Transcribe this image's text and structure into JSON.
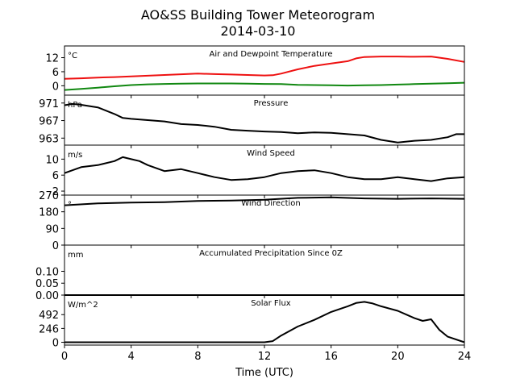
{
  "figure": {
    "title_line1": "AO&SS Building Tower Meteorogram",
    "title_line2": "2014-03-10",
    "xlabel": "Time (UTC)",
    "xticks": [
      "0",
      "4",
      "8",
      "12",
      "16",
      "20",
      "24"
    ]
  },
  "colors": {
    "temperature": "#ee1111",
    "dewpoint": "#118811",
    "default": "#000000"
  },
  "chart_data": [
    {
      "type": "line",
      "title": "Air and Dewpoint Temperature",
      "unit": "°C",
      "xlim": [
        0,
        24
      ],
      "ylim": [
        -4,
        17
      ],
      "yticks": [
        "12",
        "6",
        "0"
      ],
      "series": [
        {
          "x": [
            0,
            1,
            2,
            3,
            4,
            5,
            6,
            7,
            8,
            9,
            10,
            11,
            12,
            12.5,
            13,
            14,
            15,
            16,
            17,
            17.5,
            18,
            19,
            20,
            21,
            22,
            23,
            24
          ],
          "values": [
            3,
            3.2,
            3.5,
            3.7,
            4.0,
            4.3,
            4.6,
            4.9,
            5.2,
            5.0,
            4.8,
            4.6,
            4.4,
            4.5,
            5.2,
            7.0,
            8.5,
            9.5,
            10.5,
            11.7,
            12.3,
            12.5,
            12.5,
            12.4,
            12.5,
            11.5,
            10.2
          ]
        },
        {
          "x": [
            0,
            1,
            2,
            3,
            4,
            5,
            6,
            7,
            8,
            9,
            10,
            11,
            12,
            13,
            14,
            15,
            16,
            17,
            18,
            19,
            20,
            21,
            22,
            23,
            24
          ],
          "values": [
            -1.8,
            -1.3,
            -0.8,
            -0.2,
            0.3,
            0.6,
            0.8,
            0.9,
            1.0,
            1.0,
            1.0,
            0.9,
            0.8,
            0.7,
            0.4,
            0.3,
            0.2,
            0.1,
            0.2,
            0.3,
            0.5,
            0.7,
            0.9,
            1.1,
            1.3
          ]
        }
      ]
    },
    {
      "type": "line",
      "title": "Pressure",
      "unit": "hPa",
      "xlim": [
        0,
        24
      ],
      "ylim": [
        961.4,
        972.8
      ],
      "yticks": [
        "971",
        "967",
        "963"
      ],
      "series": [
        {
          "x": [
            0,
            0.5,
            1,
            2,
            3,
            3.5,
            4,
            5,
            6,
            7,
            8,
            9,
            10,
            11,
            12,
            13,
            14,
            15,
            16,
            17,
            18,
            19,
            20,
            21,
            22,
            23,
            23.5,
            24
          ],
          "values": [
            970.5,
            970.8,
            970.6,
            970.0,
            968.5,
            967.6,
            967.4,
            967.1,
            966.8,
            966.2,
            966.0,
            965.6,
            964.9,
            964.7,
            964.5,
            964.4,
            964.1,
            964.3,
            964.2,
            963.9,
            963.6,
            962.6,
            962.0,
            962.4,
            962.6,
            963.2,
            963.9,
            963.9
          ]
        }
      ]
    },
    {
      "type": "line",
      "title": "Wind Speed",
      "unit": "m/s",
      "xlim": [
        0,
        24
      ],
      "ylim": [
        1.0,
        13.5
      ],
      "yticks": [
        "10",
        "6",
        "2"
      ],
      "series": [
        {
          "x": [
            0,
            1,
            2,
            3,
            3.5,
            4,
            4.5,
            5,
            6,
            7,
            8,
            9,
            10,
            11,
            12,
            13,
            14,
            15,
            16,
            17,
            18,
            19,
            20,
            21,
            22,
            23,
            24
          ],
          "values": [
            6.5,
            8.0,
            8.5,
            9.5,
            10.5,
            10.0,
            9.5,
            8.5,
            7.0,
            7.5,
            6.5,
            5.5,
            4.8,
            5.0,
            5.5,
            6.5,
            7.0,
            7.2,
            6.5,
            5.5,
            5.0,
            5.0,
            5.5,
            5.0,
            4.5,
            5.2,
            5.5
          ]
        }
      ]
    },
    {
      "type": "line",
      "title": "Wind Direction",
      "unit": "°",
      "xlim": [
        0,
        24
      ],
      "ylim": [
        0,
        270
      ],
      "yticks": [
        "270",
        "180",
        "90",
        "0"
      ],
      "series": [
        {
          "x": [
            0,
            2,
            4,
            6,
            8,
            10,
            12,
            14,
            16,
            18,
            20,
            22,
            24
          ],
          "values": [
            215,
            225,
            230,
            232,
            238,
            241,
            245,
            255,
            258,
            252,
            250,
            252,
            250
          ]
        }
      ]
    },
    {
      "type": "line",
      "title": "Accumulated Precipitation Since 0Z",
      "unit": "mm",
      "xlim": [
        0,
        24
      ],
      "ylim": [
        0,
        0.21
      ],
      "yticks": [
        "0.10",
        "0.05",
        "0.00"
      ],
      "series": [
        {
          "x": [
            0,
            24
          ],
          "values": [
            0,
            0
          ]
        }
      ]
    },
    {
      "type": "line",
      "title": "Solar Flux",
      "unit": "W/m^2",
      "xlim": [
        0,
        24
      ],
      "ylim": [
        -50,
        840
      ],
      "yticks": [
        "492",
        "246",
        "0"
      ],
      "series": [
        {
          "x": [
            0,
            12,
            12.5,
            13,
            14,
            15,
            16,
            17,
            17.5,
            18,
            18.5,
            19,
            20,
            21,
            21.5,
            22,
            22.5,
            23,
            24
          ],
          "values": [
            0,
            0,
            20,
            120,
            280,
            400,
            540,
            640,
            700,
            720,
            690,
            640,
            560,
            430,
            380,
            410,
            220,
            100,
            0
          ]
        }
      ]
    }
  ]
}
